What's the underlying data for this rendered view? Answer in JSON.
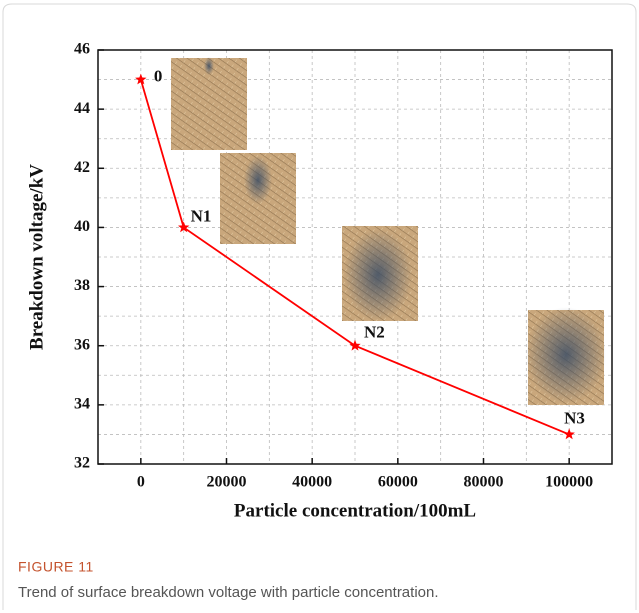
{
  "chart_data": {
    "type": "line",
    "xlabel": "Particle concentration/100mL",
    "ylabel": "Breakdown voltage/kV",
    "x": [
      0,
      10000,
      50000,
      100000
    ],
    "series": [
      {
        "color": "#ff0000",
        "values": [
          45,
          40,
          36,
          33
        ]
      }
    ],
    "point_labels": [
      "0",
      "N1",
      "N2",
      "N3"
    ],
    "xlim": [
      -10000,
      110000
    ],
    "xticks": [
      0,
      20000,
      40000,
      60000,
      80000,
      100000
    ],
    "ylim": [
      32,
      46
    ],
    "yticks": [
      32,
      34,
      36,
      38,
      40,
      42,
      44,
      46
    ],
    "grid": true
  },
  "figure_label": "FIGURE 11",
  "caption": "Trend of surface breakdown voltage with particle concentration."
}
